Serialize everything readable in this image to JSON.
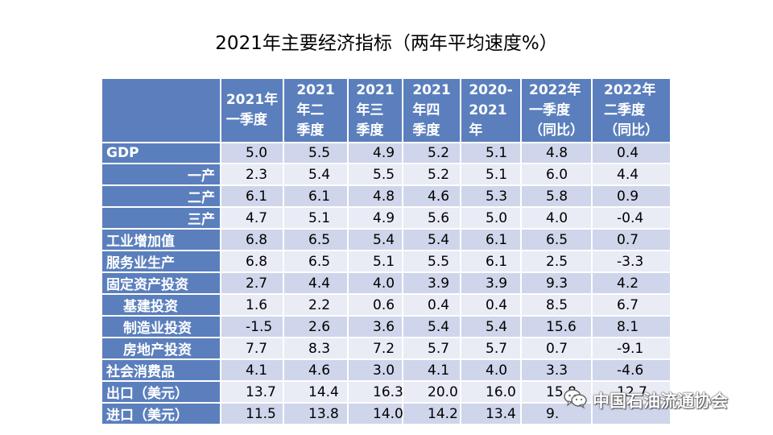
{
  "title": "2021年主要经济指标（两年平均速度%）",
  "columns": [
    "2021年\n一季度",
    "2021\n年二\n季度",
    "2021\n年三\n季度",
    "2021\n年四\n季度",
    "2020-\n2021\n年",
    "2022年\n一季度\n（同比）",
    "2022年\n二季度\n（同比）"
  ],
  "rows": [
    {
      "label": "GDP",
      "values": [
        "5.0",
        "5.5",
        "4.9",
        "5.2",
        "5.1",
        "4.8",
        "0.4"
      ]
    },
    {
      "label": "一产",
      "values": [
        "2.3",
        "5.4",
        "5.5",
        "5.2",
        "5.1",
        "6.0",
        "4.4"
      ]
    },
    {
      "label": "二产",
      "values": [
        "6.1",
        "6.1",
        "4.8",
        "4.6",
        "5.3",
        "5.8",
        "0.9"
      ]
    },
    {
      "label": "三产",
      "values": [
        "4.7",
        "5.1",
        "4.9",
        "5.6",
        "5.0",
        "4.0",
        "-0.4"
      ]
    },
    {
      "label": "工业增加值",
      "values": [
        "6.8",
        "6.5",
        "5.4",
        "5.4",
        "6.1",
        "6.5",
        "0.7"
      ]
    },
    {
      "label": "服务业生产",
      "values": [
        "6.8",
        "6.5",
        "5.1",
        "5.5",
        "6.1",
        "2.5",
        "-3.3"
      ]
    },
    {
      "label": "固定资产投资",
      "values": [
        "2.7",
        "4.4",
        "4.0",
        "3.9",
        "3.9",
        "9.3",
        "4.2"
      ]
    },
    {
      "label": "基建投资",
      "values": [
        "1.6",
        "2.2",
        "0.6",
        "0.4",
        "0.4",
        "8.5",
        "6.7"
      ]
    },
    {
      "label": "制造业投资",
      "values": [
        "-1.5",
        "2.6",
        "3.6",
        "5.4",
        "5.4",
        "15.6",
        "8.1"
      ]
    },
    {
      "label": "房地产投资",
      "values": [
        "7.7",
        "8.3",
        "7.2",
        "5.7",
        "5.7",
        "0.7",
        "-9.1"
      ]
    },
    {
      "label": "社会消费品",
      "values": [
        "4.1",
        "4.6",
        "3.0",
        "4.1",
        "4.0",
        "3.3",
        "-4.6"
      ]
    },
    {
      "label": "出口（美元）",
      "values": [
        "13.7",
        "14.4",
        "16.3",
        "20.0",
        "16.0",
        "15.8",
        "12.7"
      ]
    },
    {
      "label": "进口（美元）",
      "values": [
        "11.5",
        "13.8",
        "14.0",
        "14.2",
        "13.4",
        "9.",
        ""
      ]
    }
  ],
  "watermark": {
    "text": "中国石油流通协会",
    "icon": "wechat-icon"
  },
  "colors": {
    "header_bg": "#5b7fbd",
    "row_band_dark": "#cfd5ea",
    "row_band_light": "#e9ebf5",
    "header_text": "#ffffff"
  }
}
